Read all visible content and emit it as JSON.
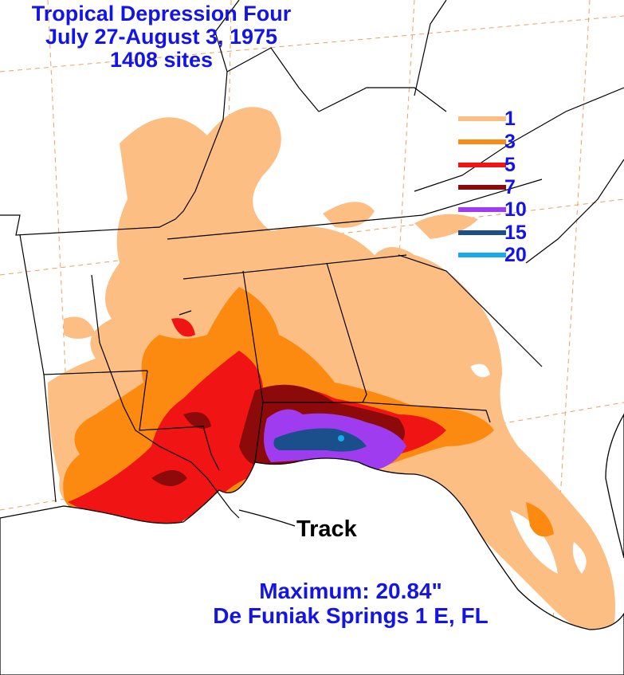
{
  "title": {
    "line1": "Tropical Depression Four",
    "line2": "July 27-August 3, 1975",
    "line3": "1408 sites"
  },
  "legend": {
    "unit": "inches",
    "items": [
      {
        "label": "1",
        "color": "#fcbe82"
      },
      {
        "label": "3",
        "color": "#fc8a10"
      },
      {
        "label": "5",
        "color": "#f01414"
      },
      {
        "label": "7",
        "color": "#8c0a0a"
      },
      {
        "label": "10",
        "color": "#a03cf0"
      },
      {
        "label": "15",
        "color": "#1a4f8c"
      },
      {
        "label": "20",
        "color": "#14aaf0"
      }
    ]
  },
  "track": {
    "label": "Track"
  },
  "maximum": {
    "line1": "Maximum:  20.84\"",
    "line2": "De Funiak Springs 1 E, FL"
  },
  "colors": {
    "title_text": "#1414e6",
    "boundaries": "#000000",
    "graticule": "#f0a060"
  }
}
